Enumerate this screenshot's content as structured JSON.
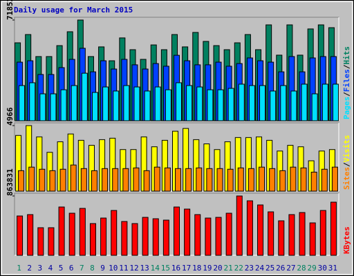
{
  "chart_data": [
    {
      "type": "bar",
      "title": "Daily usage for March 2015",
      "ylim": [
        0,
        71852
      ],
      "yticks": [
        71852
      ],
      "series": [
        {
          "name": "Pages",
          "color": "#00e0ff",
          "values": [
            25100,
            27100,
            19200,
            19200,
            22100,
            25100,
            33900,
            20200,
            24100,
            21200,
            25100,
            24100,
            21200,
            24100,
            22100,
            27100,
            25100,
            24100,
            22100,
            22100,
            23100,
            26100,
            25100,
            25100,
            21200,
            25100,
            21200,
            26100,
            19200,
            26100,
            26100
          ]
        },
        {
          "name": "Files",
          "color": "#0040ff",
          "values": [
            41800,
            42800,
            33000,
            33000,
            37900,
            43800,
            51700,
            34900,
            42800,
            36900,
            43800,
            39900,
            36900,
            40800,
            38900,
            46700,
            42800,
            39900,
            39900,
            41800,
            38900,
            40800,
            44800,
            42800,
            41800,
            34900,
            45800,
            34900,
            44800,
            45800,
            45800
          ]
        },
        {
          "name": "Hits",
          "color": "#008060",
          "values": [
            55600,
            61500,
            45800,
            45800,
            53600,
            63500,
            71852,
            45800,
            52700,
            42800,
            59100,
            50700,
            43800,
            54100,
            50700,
            61500,
            52700,
            63000,
            56600,
            53600,
            50700,
            55600,
            61500,
            50700,
            68400,
            46800,
            68400,
            46800,
            65500,
            68400,
            66400
          ]
        }
      ]
    },
    {
      "type": "bar",
      "ylim": [
        0,
        4966
      ],
      "yticks": [
        4966
      ],
      "series": [
        {
          "name": "Sites",
          "color": "#ff8000",
          "values": [
            1550,
            1820,
            1660,
            1550,
            1660,
            1980,
            1710,
            1550,
            1710,
            1710,
            1710,
            1760,
            1550,
            1820,
            1760,
            1710,
            1710,
            1760,
            1710,
            1710,
            1660,
            1760,
            1710,
            1820,
            1710,
            1550,
            1820,
            1760,
            1440,
            1660,
            1820
          ]
        },
        {
          "name": "Visits",
          "color": "#ffff00",
          "values": [
            4220,
            4966,
            4110,
            2940,
            3740,
            4330,
            3850,
            3470,
            3900,
            4010,
            3150,
            3150,
            4110,
            3360,
            3850,
            4540,
            4750,
            3900,
            3580,
            3150,
            3740,
            4060,
            4060,
            4110,
            3850,
            3040,
            3470,
            3360,
            2300,
            3040,
            3150
          ]
        }
      ]
    },
    {
      "type": "bar",
      "ylim": [
        0,
        863831
      ],
      "yticks": [
        863831
      ],
      "categories": [
        "1",
        "2",
        "3",
        "4",
        "5",
        "6",
        "7",
        "8",
        "9",
        "10",
        "11",
        "12",
        "13",
        "14",
        "15",
        "16",
        "17",
        "18",
        "19",
        "20",
        "21",
        "22",
        "23",
        "24",
        "25",
        "26",
        "27",
        "28",
        "29",
        "30",
        "31"
      ],
      "category_colors": [
        "#008060",
        "#0000a0",
        "#0000a0",
        "#0000a0",
        "#0000a0",
        "#0000a0",
        "#008060",
        "#008060",
        "#0000a0",
        "#0000a0",
        "#0000a0",
        "#0000a0",
        "#0000a0",
        "#008060",
        "#008060",
        "#0000a0",
        "#0000a0",
        "#0000a0",
        "#0000a0",
        "#0000a0",
        "#008060",
        "#008060",
        "#0000a0",
        "#0000a0",
        "#0000a0",
        "#0000a0",
        "#0000a0",
        "#008060",
        "#008060",
        "#0000a0",
        "#0000a0"
      ],
      "series": [
        {
          "name": "KBytes",
          "color": "#ff0000",
          "values": [
            572600,
            592700,
            401800,
            401800,
            703200,
            612700,
            683100,
            462100,
            542400,
            652900,
            492200,
            462100,
            552500,
            532400,
            512300,
            703200,
            673000,
            592700,
            542400,
            552500,
            612700,
            863831,
            793600,
            733300,
            632800,
            502300,
            592700,
            622800,
            472100,
            652900,
            773500
          ]
        }
      ]
    }
  ]
}
